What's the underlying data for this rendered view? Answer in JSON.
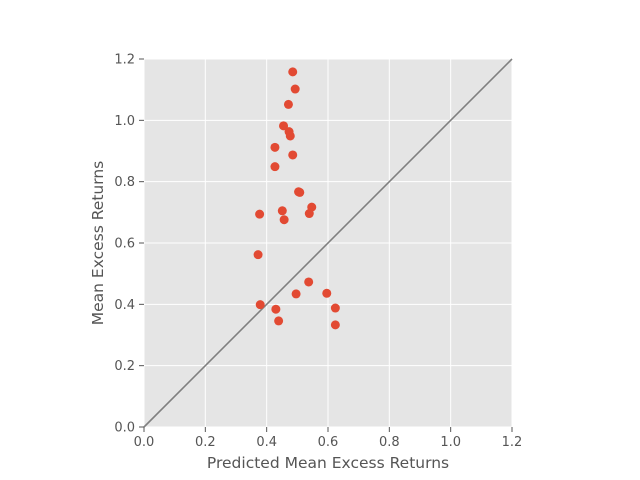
{
  "chart_data": {
    "type": "scatter",
    "xlabel": "Predicted Mean Excess Returns",
    "ylabel": "Mean Excess Returns",
    "xlim": [
      0,
      1.2
    ],
    "ylim": [
      0,
      1.2
    ],
    "xticks": [
      "0.0",
      "0.2",
      "0.4",
      "0.6",
      "0.8",
      "1.0",
      "1.2"
    ],
    "yticks": [
      "0.0",
      "0.2",
      "0.4",
      "0.6",
      "0.8",
      "1.0",
      "1.2"
    ],
    "grid": true,
    "reference_line": {
      "from": [
        0,
        0
      ],
      "to": [
        1.2,
        1.2
      ]
    },
    "points": [
      {
        "x": 0.485,
        "y": 1.158
      },
      {
        "x": 0.493,
        "y": 1.102
      },
      {
        "x": 0.471,
        "y": 1.052
      },
      {
        "x": 0.455,
        "y": 0.982
      },
      {
        "x": 0.473,
        "y": 0.963
      },
      {
        "x": 0.477,
        "y": 0.949
      },
      {
        "x": 0.427,
        "y": 0.912
      },
      {
        "x": 0.485,
        "y": 0.887
      },
      {
        "x": 0.427,
        "y": 0.849
      },
      {
        "x": 0.504,
        "y": 0.767
      },
      {
        "x": 0.508,
        "y": 0.765
      },
      {
        "x": 0.547,
        "y": 0.717
      },
      {
        "x": 0.377,
        "y": 0.694
      },
      {
        "x": 0.451,
        "y": 0.705
      },
      {
        "x": 0.539,
        "y": 0.696
      },
      {
        "x": 0.457,
        "y": 0.676
      },
      {
        "x": 0.372,
        "y": 0.562
      },
      {
        "x": 0.537,
        "y": 0.473
      },
      {
        "x": 0.596,
        "y": 0.436
      },
      {
        "x": 0.496,
        "y": 0.434
      },
      {
        "x": 0.379,
        "y": 0.399
      },
      {
        "x": 0.624,
        "y": 0.388
      },
      {
        "x": 0.43,
        "y": 0.384
      },
      {
        "x": 0.439,
        "y": 0.346
      },
      {
        "x": 0.624,
        "y": 0.333
      }
    ],
    "colors": {
      "points": "#e24a33",
      "plot_background": "#e5e5e5",
      "grid": "#ffffff",
      "reference_line": "#808080",
      "text": "#555555"
    }
  }
}
